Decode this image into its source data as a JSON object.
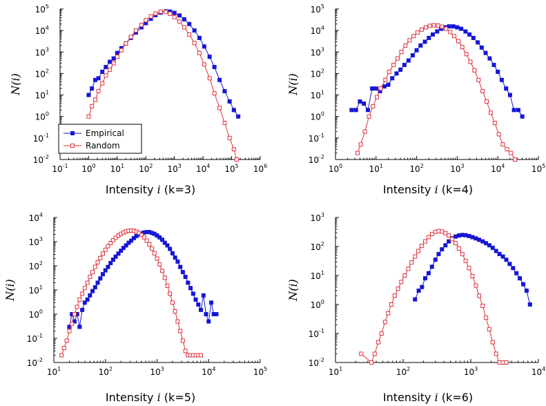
{
  "colors": {
    "empirical": "#1515d6",
    "random": "#e0303a"
  },
  "legend": {
    "empirical": "Empirical",
    "random": "Random"
  },
  "chart_data": [
    {
      "type": "scatter",
      "xlabel_prefix": "Intensity ",
      "xlabel_var": "i",
      "xlabel_suffix": " (k=3)",
      "ylabel": "N(i)",
      "xscale": "log",
      "yscale": "log",
      "xlim": [
        0.1,
        1000000
      ],
      "ylim": [
        0.01,
        100000
      ],
      "legend_position": "bottom-left",
      "series": [
        {
          "name": "Empirical",
          "key": "empirical",
          "marker": "filled-square",
          "x": [
            1,
            1.3,
            1.7,
            2.2,
            3,
            4,
            5.5,
            7.5,
            10,
            14,
            20,
            30,
            45,
            70,
            100,
            150,
            220,
            330,
            500,
            700,
            1000,
            1500,
            2200,
            3300,
            5000,
            7500,
            11000,
            17000,
            25000,
            38000,
            57000,
            85000,
            120000,
            170000
          ],
          "y": [
            10,
            20,
            50,
            60,
            120,
            200,
            350,
            500,
            900,
            1500,
            2500,
            4500,
            8000,
            14000,
            22000,
            35000,
            52000,
            68000,
            78000,
            76000,
            66000,
            50000,
            33000,
            20000,
            10000,
            4500,
            1800,
            600,
            200,
            50,
            15,
            5,
            2,
            1
          ]
        },
        {
          "name": "Random",
          "key": "random",
          "marker": "open-square",
          "x": [
            1,
            1.3,
            1.7,
            2.2,
            3,
            4,
            5.5,
            7.5,
            10,
            14,
            20,
            30,
            45,
            70,
            100,
            150,
            220,
            330,
            500,
            700,
            1000,
            1500,
            2200,
            3300,
            5000,
            7500,
            11000,
            17000,
            25000,
            38000,
            57000,
            85000,
            120000,
            150000
          ],
          "y": [
            1,
            3,
            6,
            15,
            35,
            80,
            150,
            300,
            600,
            1200,
            2500,
            5000,
            10000,
            18000,
            30000,
            45000,
            62000,
            75000,
            73000,
            60000,
            42000,
            26000,
            14000,
            6500,
            2600,
            900,
            260,
            60,
            12,
            2.5,
            0.5,
            0.1,
            0.03,
            0.01
          ]
        }
      ]
    },
    {
      "type": "scatter",
      "xlabel_prefix": "Intensity ",
      "xlabel_var": "i",
      "xlabel_suffix": " (k=4)",
      "ylabel": "N(i)",
      "xscale": "log",
      "yscale": "log",
      "xlim": [
        1,
        100000
      ],
      "ylim": [
        0.01,
        100000
      ],
      "series": [
        {
          "name": "Empirical",
          "key": "empirical",
          "marker": "filled-square",
          "x": [
            2.5,
            3.2,
            4,
            5,
            6.3,
            8,
            10,
            12.5,
            16,
            20,
            25,
            32,
            40,
            50,
            63,
            80,
            100,
            125,
            160,
            200,
            250,
            320,
            400,
            500,
            630,
            800,
            1000,
            1250,
            1600,
            2000,
            2500,
            3200,
            4000,
            5000,
            6300,
            8000,
            10000,
            12500,
            16000,
            20000,
            25000,
            32000,
            40000
          ],
          "y": [
            2,
            2,
            5,
            4,
            2,
            20,
            20,
            15,
            25,
            30,
            60,
            100,
            150,
            250,
            400,
            700,
            1200,
            2000,
            3000,
            4500,
            6500,
            9000,
            12000,
            14000,
            15500,
            15500,
            14000,
            12000,
            9000,
            6500,
            4500,
            2800,
            1600,
            900,
            500,
            250,
            120,
            50,
            20,
            10,
            2,
            2,
            1
          ]
        },
        {
          "name": "Random",
          "key": "random",
          "marker": "open-square",
          "x": [
            3.5,
            4.2,
            5.3,
            6.7,
            8.4,
            10.5,
            13,
            17,
            21,
            27,
            34,
            42,
            53,
            67,
            84,
            105,
            133,
            168,
            211,
            266,
            335,
            420,
            530,
            670,
            840,
            1060,
            1330,
            1680,
            2110,
            2660,
            3350,
            4220,
            5310,
            6690,
            8420,
            10600,
            13300,
            16800,
            21100,
            26600
          ],
          "y": [
            0.02,
            0.05,
            0.2,
            1,
            3,
            8,
            20,
            50,
            120,
            250,
            500,
            1000,
            2000,
            3500,
            5500,
            8000,
            11000,
            14000,
            16500,
            17500,
            17000,
            15000,
            12000,
            8500,
            5500,
            3200,
            1700,
            800,
            350,
            140,
            50,
            15,
            5,
            1.5,
            0.5,
            0.15,
            0.05,
            0.03,
            0.02,
            0.01
          ]
        }
      ]
    },
    {
      "type": "scatter",
      "xlabel_prefix": "Intensity ",
      "xlabel_var": "i",
      "xlabel_suffix": " (k=5)",
      "ylabel": "N(i)",
      "xscale": "log",
      "yscale": "log",
      "xlim": [
        10,
        100000
      ],
      "ylim": [
        0.01,
        10000
      ],
      "series": [
        {
          "name": "Empirical",
          "key": "empirical",
          "marker": "filled-square",
          "x": [
            20,
            22.4,
            25.1,
            28.2,
            31.6,
            35.5,
            39.8,
            44.7,
            50.1,
            56.2,
            63.1,
            70.8,
            79.4,
            89.1,
            100,
            112,
            126,
            141,
            158,
            178,
            200,
            224,
            251,
            282,
            316,
            355,
            398,
            447,
            501,
            562,
            631,
            708,
            794,
            891,
            1000,
            1122,
            1259,
            1413,
            1585,
            1778,
            1995,
            2239,
            2512,
            2818,
            3162,
            3548,
            3981,
            4467,
            5012,
            5623,
            6310,
            7079,
            7943,
            8913,
            10000,
            11220,
            12590,
            14130
          ],
          "y": [
            0.3,
            1,
            0.5,
            1,
            0.3,
            1.5,
            3,
            4,
            6,
            9,
            13,
            20,
            30,
            45,
            65,
            90,
            130,
            180,
            240,
            320,
            420,
            550,
            700,
            900,
            1100,
            1400,
            1700,
            2000,
            2200,
            2400,
            2500,
            2500,
            2300,
            2100,
            1800,
            1500,
            1200,
            900,
            700,
            500,
            330,
            220,
            150,
            90,
            55,
            35,
            20,
            12,
            7,
            4,
            2.5,
            1.5,
            6,
            1,
            0.5,
            3,
            1,
            1
          ]
        },
        {
          "name": "Random",
          "key": "random",
          "marker": "open-square",
          "x": [
            14.1,
            15.8,
            17.8,
            20,
            22.4,
            25.1,
            28.2,
            31.6,
            35.5,
            39.8,
            44.7,
            50.1,
            56.2,
            63.1,
            70.8,
            79.4,
            89.1,
            100,
            112,
            126,
            141,
            158,
            178,
            200,
            224,
            251,
            282,
            316,
            355,
            398,
            447,
            501,
            562,
            631,
            708,
            794,
            891,
            1000,
            1122,
            1259,
            1413,
            1585,
            1778,
            1995,
            2239,
            2512,
            2818,
            3162,
            3548,
            3981,
            4467,
            5012,
            5623,
            6310,
            7079
          ],
          "y": [
            0.02,
            0.04,
            0.08,
            0.2,
            0.4,
            1,
            2,
            4,
            7,
            12,
            20,
            35,
            55,
            90,
            140,
            210,
            320,
            460,
            650,
            880,
            1150,
            1450,
            1800,
            2100,
            2400,
            2650,
            2800,
            2900,
            2800,
            2600,
            2300,
            1900,
            1500,
            1100,
            780,
            520,
            330,
            200,
            115,
            62,
            32,
            15,
            7,
            3,
            1.3,
            0.5,
            0.2,
            0.08,
            0.03,
            0.02,
            0.02,
            0.02,
            0.02,
            0.02,
            0.02
          ]
        }
      ]
    },
    {
      "type": "scatter",
      "xlabel_prefix": "Intensity ",
      "xlabel_var": "i",
      "xlabel_suffix": " (k=6)",
      "ylabel": "N(i)",
      "xscale": "log",
      "yscale": "log",
      "xlim": [
        10,
        10000
      ],
      "ylim": [
        0.01,
        1000
      ],
      "series": [
        {
          "name": "Empirical",
          "key": "empirical",
          "marker": "filled-square",
          "x": [
            150,
            170,
            190,
            212,
            238,
            267,
            300,
            335,
            375,
            422,
            473,
            530,
            596,
            668,
            750,
            841,
            944,
            1060,
            1190,
            1330,
            1500,
            1680,
            1880,
            2110,
            2370,
            2660,
            2990,
            3350,
            3760,
            4220,
            4730,
            5310,
            5960,
            6690,
            7500
          ],
          "y": [
            1.5,
            3,
            4,
            8,
            12,
            20,
            35,
            55,
            80,
            110,
            150,
            190,
            220,
            240,
            250,
            245,
            230,
            210,
            190,
            170,
            150,
            130,
            110,
            90,
            70,
            55,
            45,
            35,
            25,
            18,
            12,
            8,
            5,
            3,
            1
          ]
        },
        {
          "name": "Random",
          "key": "random",
          "marker": "open-square",
          "x": [
            24,
            34,
            38,
            43,
            48,
            54,
            60,
            67,
            75,
            84,
            94,
            106,
            119,
            133,
            150,
            168,
            188,
            212,
            238,
            267,
            300,
            335,
            375,
            422,
            473,
            530,
            596,
            668,
            750,
            841,
            944,
            1060,
            1190,
            1330,
            1500,
            1680,
            1880,
            2110,
            2370,
            2660,
            2990,
            3350
          ],
          "y": [
            0.02,
            0.01,
            0.02,
            0.05,
            0.1,
            0.25,
            0.5,
            1,
            2,
            3.5,
            6,
            10,
            17,
            28,
            45,
            70,
            105,
            150,
            210,
            270,
            320,
            340,
            330,
            290,
            240,
            180,
            130,
            85,
            55,
            32,
            18,
            9.5,
            4.5,
            2,
            0.9,
            0.35,
            0.14,
            0.05,
            0.02,
            0.01,
            0.01,
            0.01
          ]
        }
      ]
    }
  ]
}
